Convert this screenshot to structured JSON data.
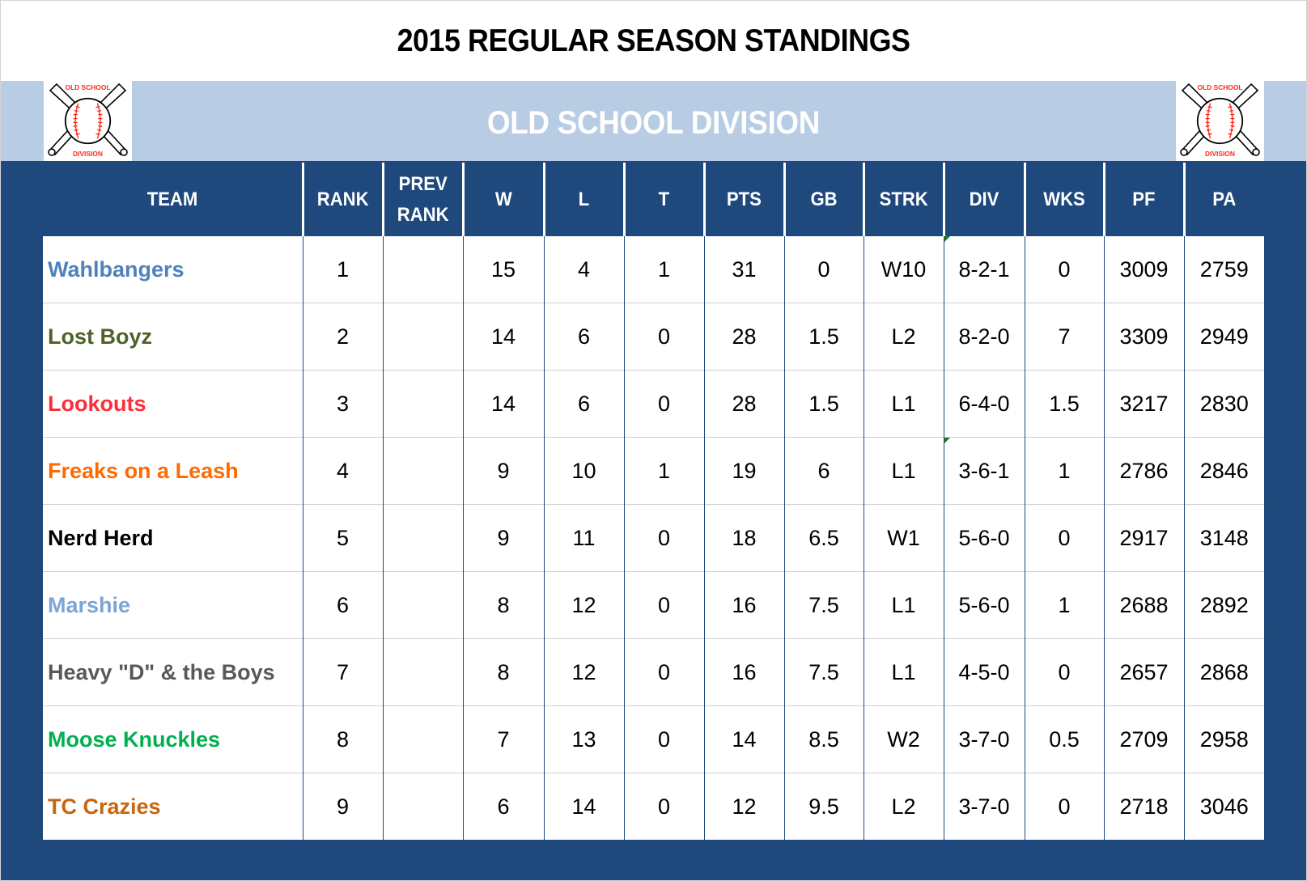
{
  "header": {
    "title": "2015 REGULAR SEASON STANDINGS",
    "division": "OLD SCHOOL DIVISION",
    "logo": {
      "top_text": "OLD SCHOOL",
      "bottom_text": "DIVISION",
      "icon": "crossed-bats-baseball-icon"
    }
  },
  "colors": {
    "dark_blue": "#1f497d",
    "light_blue": "#b8cce4",
    "logo_red": "#ff2a1a"
  },
  "table": {
    "columns": [
      {
        "key": "team",
        "label": "TEAM"
      },
      {
        "key": "rank",
        "label": "RANK"
      },
      {
        "key": "prev_rank",
        "label": "PREV RANK",
        "line1": "PREV",
        "line2": "RANK"
      },
      {
        "key": "w",
        "label": "W"
      },
      {
        "key": "l",
        "label": "L"
      },
      {
        "key": "t",
        "label": "T"
      },
      {
        "key": "pts",
        "label": "PTS"
      },
      {
        "key": "gb",
        "label": "GB"
      },
      {
        "key": "strk",
        "label": "STRK"
      },
      {
        "key": "div",
        "label": "DIV"
      },
      {
        "key": "wks",
        "label": "WKS"
      },
      {
        "key": "pf",
        "label": "PF"
      },
      {
        "key": "pa",
        "label": "PA"
      }
    ],
    "rows": [
      {
        "team": "Wahlbangers",
        "color": "#4f81bd",
        "rank": "1",
        "prev_rank": "",
        "w": "15",
        "l": "4",
        "t": "1",
        "pts": "31",
        "gb": "0",
        "strk": "W10",
        "div": "8-2-1",
        "wks": "0",
        "pf": "3009",
        "pa": "2759",
        "div_marker": true
      },
      {
        "team": "Lost Boyz",
        "color": "#4f6228",
        "rank": "2",
        "prev_rank": "",
        "w": "14",
        "l": "6",
        "t": "0",
        "pts": "28",
        "gb": "1.5",
        "strk": "L2",
        "div": "8-2-0",
        "wks": "7",
        "pf": "3309",
        "pa": "2949",
        "div_marker": false
      },
      {
        "team": "Lookouts",
        "color": "#ff2b3a",
        "rank": "3",
        "prev_rank": "",
        "w": "14",
        "l": "6",
        "t": "0",
        "pts": "28",
        "gb": "1.5",
        "strk": "L1",
        "div": "6-4-0",
        "wks": "1.5",
        "pf": "3217",
        "pa": "2830",
        "div_marker": false
      },
      {
        "team": "Freaks on a Leash",
        "color": "#ff6a00",
        "rank": "4",
        "prev_rank": "",
        "w": "9",
        "l": "10",
        "t": "1",
        "pts": "19",
        "gb": "6",
        "strk": "L1",
        "div": "3-6-1",
        "wks": "1",
        "pf": "2786",
        "pa": "2846",
        "div_marker": true
      },
      {
        "team": "Nerd Herd",
        "color": "#000000",
        "rank": "5",
        "prev_rank": "",
        "w": "9",
        "l": "11",
        "t": "0",
        "pts": "18",
        "gb": "6.5",
        "strk": "W1",
        "div": "5-6-0",
        "wks": "0",
        "pf": "2917",
        "pa": "3148",
        "div_marker": false
      },
      {
        "team": "Marshie",
        "color": "#7ba5d6",
        "rank": "6",
        "prev_rank": "",
        "w": "8",
        "l": "12",
        "t": "0",
        "pts": "16",
        "gb": "7.5",
        "strk": "L1",
        "div": "5-6-0",
        "wks": "1",
        "pf": "2688",
        "pa": "2892",
        "div_marker": false
      },
      {
        "team": "Heavy \"D\" & the Boys",
        "color": "#595959",
        "rank": "7",
        "prev_rank": "",
        "w": "8",
        "l": "12",
        "t": "0",
        "pts": "16",
        "gb": "7.5",
        "strk": "L1",
        "div": "4-5-0",
        "wks": "0",
        "pf": "2657",
        "pa": "2868",
        "div_marker": false
      },
      {
        "team": "Moose Knuckles",
        "color": "#00b050",
        "rank": "8",
        "prev_rank": "",
        "w": "7",
        "l": "13",
        "t": "0",
        "pts": "14",
        "gb": "8.5",
        "strk": "W2",
        "div": "3-7-0",
        "wks": "0.5",
        "pf": "2709",
        "pa": "2958",
        "div_marker": false
      },
      {
        "team": "TC Crazies",
        "color": "#c8650e",
        "rank": "9",
        "prev_rank": "",
        "w": "6",
        "l": "14",
        "t": "0",
        "pts": "12",
        "gb": "9.5",
        "strk": "L2",
        "div": "3-7-0",
        "wks": "0",
        "pf": "2718",
        "pa": "3046",
        "div_marker": false
      }
    ]
  }
}
